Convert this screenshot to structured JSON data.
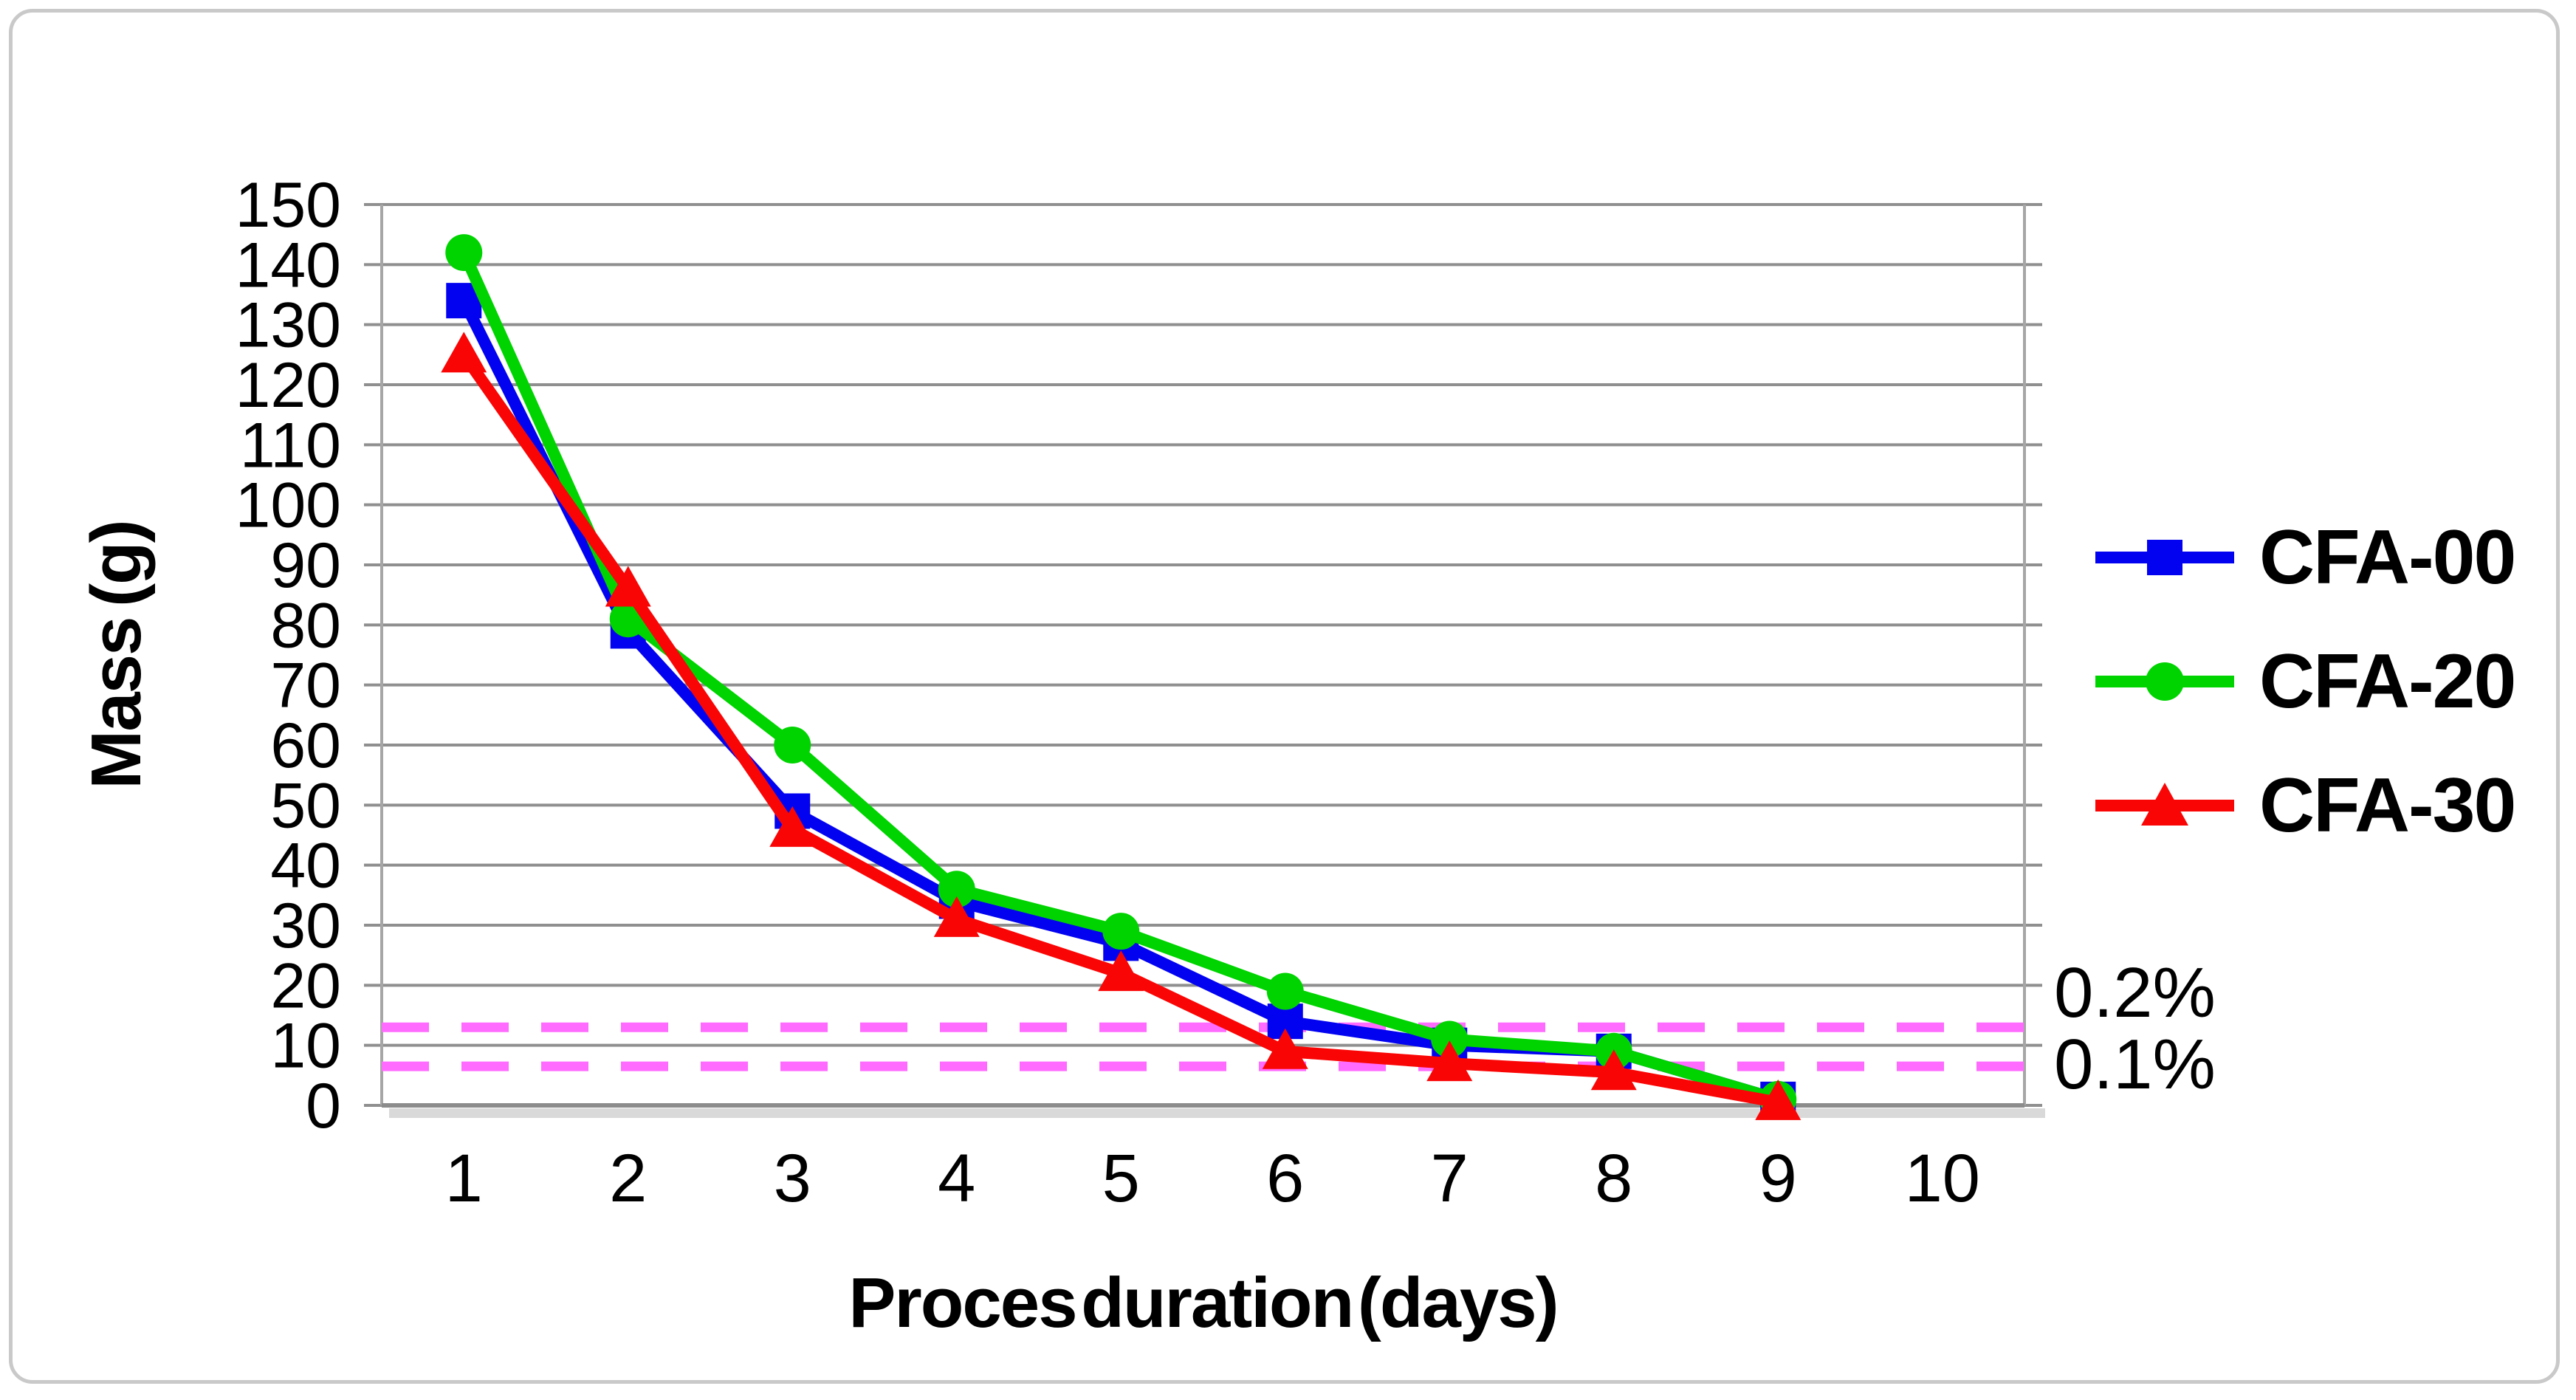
{
  "chart_data": {
    "type": "line",
    "title": "",
    "xlabel": "Proces duration (days)",
    "ylabel": "Mass (g)",
    "x": [
      1,
      2,
      3,
      4,
      5,
      6,
      7,
      8,
      9
    ],
    "x_tick_labels": [
      "1",
      "2",
      "3",
      "4",
      "5",
      "6",
      "7",
      "8",
      "9",
      "10"
    ],
    "y_tick_labels": [
      "0",
      "10",
      "20",
      "30",
      "40",
      "50",
      "60",
      "70",
      "80",
      "90",
      "100",
      "110",
      "120",
      "130",
      "140",
      "150"
    ],
    "xlim": [
      0.5,
      10.5
    ],
    "ylim": [
      0,
      150
    ],
    "grid": "horizontal-only",
    "legend_position": "right-middle",
    "series": [
      {
        "name": "CFA-00",
        "marker": "square",
        "color": "#0202f0",
        "values": [
          134,
          79,
          49,
          34,
          27,
          14,
          10,
          9,
          1
        ]
      },
      {
        "name": "CFA-20",
        "marker": "circle",
        "color": "#00d400",
        "values": [
          142,
          81,
          60,
          36,
          29,
          19,
          11,
          9,
          1
        ]
      },
      {
        "name": "CFA-30",
        "marker": "triangle",
        "color": "#fa0505",
        "values": [
          125,
          86,
          46,
          31,
          22,
          9,
          7,
          5.5,
          0.5
        ]
      }
    ],
    "ref_lines": [
      {
        "label": "0.2%",
        "value": 13,
        "color": "#ff6bff",
        "style": "dashed"
      },
      {
        "label": "0.1%",
        "value": 6.5,
        "color": "#ff6bff",
        "style": "dashed"
      }
    ],
    "style": {
      "grid_color": "#8f8f8f",
      "axis_side_color": "#a6a6a6",
      "axis_bottom_color": "#8c8c8c",
      "shadow_color": "#d9d9d9",
      "outer_border_color": "#c9c9c9",
      "background": "#ffffff",
      "text_color": "#000000"
    }
  }
}
